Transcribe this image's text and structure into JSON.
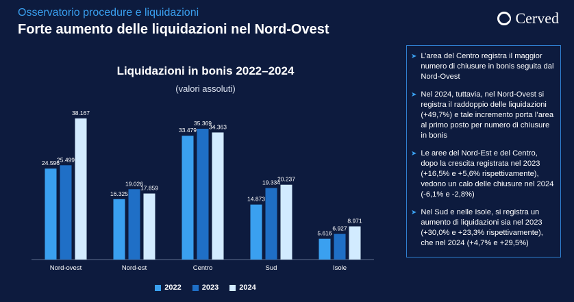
{
  "header": {
    "subtitle": "Osservatorio procedure e liquidazioni",
    "title": "Forte aumento delle liquidazioni nel Nord-Ovest"
  },
  "logo": {
    "text": "Cerved"
  },
  "chart_data": {
    "type": "bar",
    "title": "Liquidazioni in bonis 2022–2024",
    "subtitle": "(valori assoluti)",
    "categories": [
      "Nord-ovest",
      "Nord-est",
      "Centro",
      "Sud",
      "Isole"
    ],
    "series": [
      {
        "name": "2022",
        "values": [
          24596,
          16325,
          33479,
          14873,
          5616
        ],
        "labels": [
          "24.596",
          "16.325",
          "33.479",
          "14.873",
          "5.616"
        ],
        "color": "#3aa0f0"
      },
      {
        "name": "2023",
        "values": [
          25499,
          19026,
          35369,
          19334,
          6927
        ],
        "labels": [
          "25.499",
          "19.026",
          "35.369",
          "19.334",
          "6.927"
        ],
        "color": "#1f6fc6"
      },
      {
        "name": "2024",
        "values": [
          38167,
          17859,
          34363,
          20237,
          8971
        ],
        "labels": [
          "38.167",
          "17.859",
          "34.363",
          "20.237",
          "8.971"
        ],
        "color": "#d2ebff"
      }
    ],
    "ylim": [
      0,
      40000
    ],
    "grid": false,
    "legend_position": "bottom"
  },
  "side_panel": {
    "bullets": [
      "L’area del Centro registra il maggior numero di chiusure in bonis seguita dal Nord-Ovest",
      "Nel 2024, tuttavia, nel Nord-Ovest si registra il raddoppio delle liquidazioni (+49,7%) e tale incremento porta l’area al primo posto per numero di chiusure in bonis",
      "Le aree del Nord-Est e del Centro, dopo la crescita registrata nel 2023 (+16,5% e +5,6% rispettivamente), vedono un calo delle chiusure nel 2024 (-6,1% e -2,8%)",
      "Nel Sud e nelle Isole, si registra un aumento di liquidazioni sia nel 2023 (+30,0% e +23,3% rispettivamente), che nel 2024 (+4,7% e +29,5%)"
    ]
  }
}
